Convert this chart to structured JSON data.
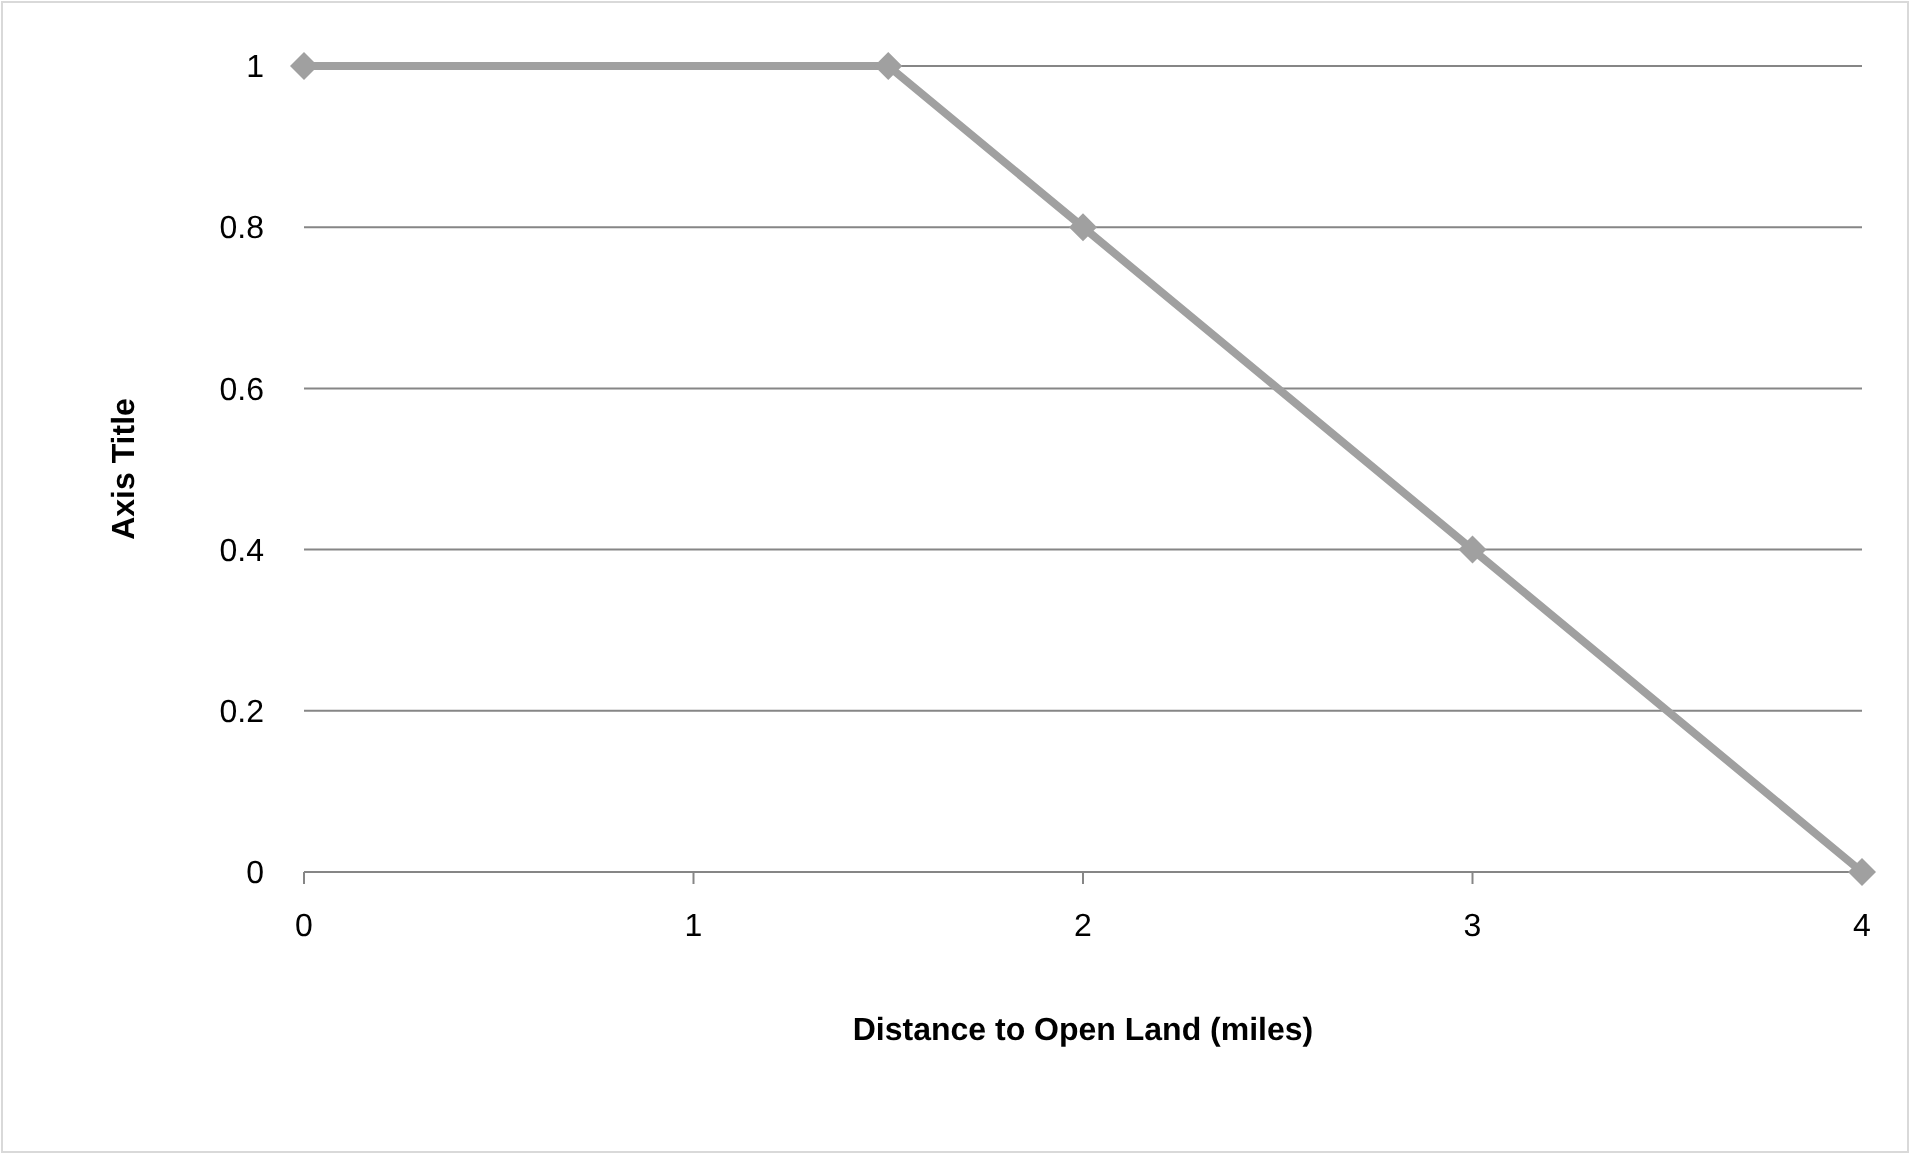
{
  "chart_data": {
    "type": "line",
    "xlabel": "Distance to Open Land (miles)",
    "ylabel": "Axis Title",
    "x": [
      0,
      1.5,
      2,
      3,
      4
    ],
    "series": [
      {
        "color": "#a0a0a0",
        "values": [
          1,
          1,
          0.8,
          0.4,
          0
        ]
      }
    ],
    "xlim": [
      0,
      4
    ],
    "xticks": [
      0,
      1,
      2,
      3,
      4
    ],
    "ylim": [
      0,
      1
    ],
    "yticks": [
      0,
      0.2,
      0.4,
      0.6,
      0.8,
      1
    ],
    "grid": "y",
    "marker": "diamond",
    "line_style": "solid"
  }
}
